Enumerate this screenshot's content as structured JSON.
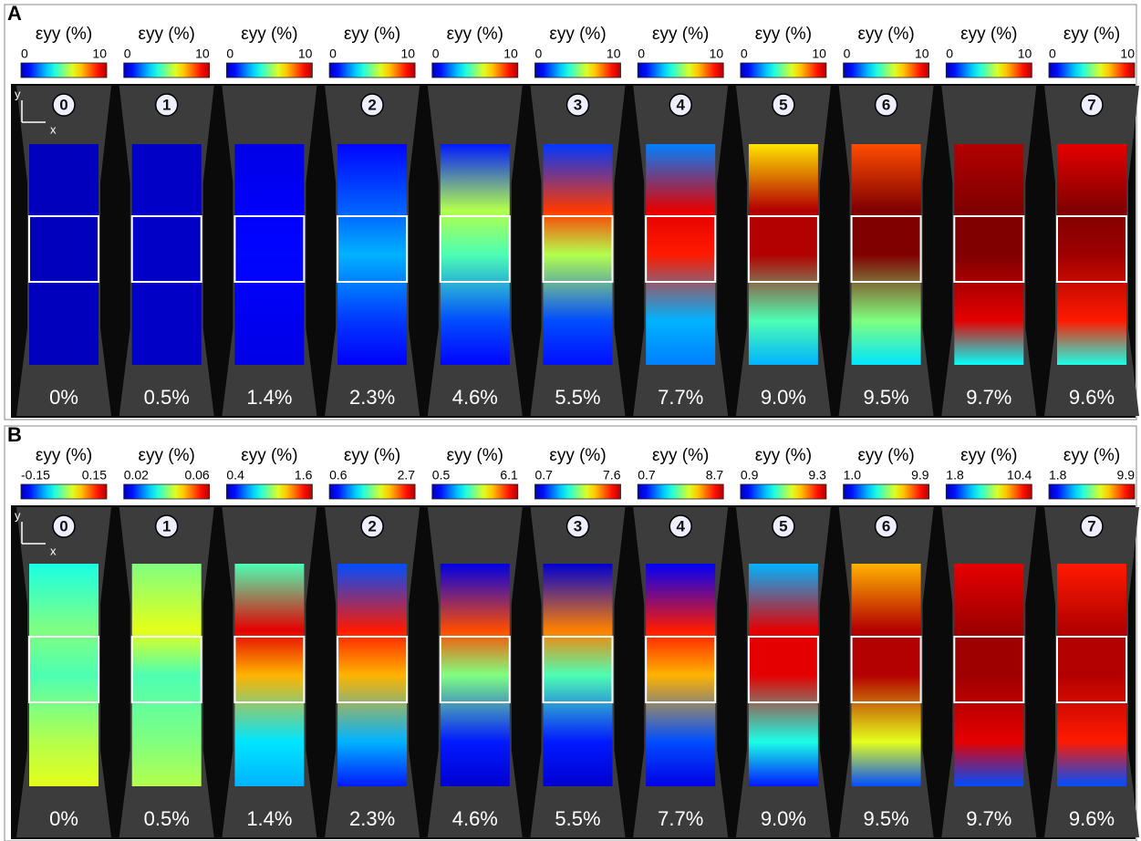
{
  "panels": [
    {
      "label": "A",
      "columns": [
        {
          "colorbar_title": "εyy (%)",
          "colorbar_min": "0",
          "colorbar_max": "10",
          "stage": "0",
          "strain": "0%"
        },
        {
          "colorbar_title": "εyy (%)",
          "colorbar_min": "0",
          "colorbar_max": "10",
          "stage": "1",
          "strain": "0.5%"
        },
        {
          "colorbar_title": "εyy (%)",
          "colorbar_min": "0",
          "colorbar_max": "10",
          "strain": "1.4%"
        },
        {
          "colorbar_title": "εyy (%)",
          "colorbar_min": "0",
          "colorbar_max": "10",
          "stage": "2",
          "strain": "2.3%"
        },
        {
          "colorbar_title": "εyy (%)",
          "colorbar_min": "0",
          "colorbar_max": "10",
          "strain": "4.6%"
        },
        {
          "colorbar_title": "εyy (%)",
          "colorbar_min": "0",
          "colorbar_max": "10",
          "stage": "3",
          "strain": "5.5%"
        },
        {
          "colorbar_title": "εyy (%)",
          "colorbar_min": "0",
          "colorbar_max": "10",
          "stage": "4",
          "strain": "7.7%"
        },
        {
          "colorbar_title": "εyy (%)",
          "colorbar_min": "0",
          "colorbar_max": "10",
          "stage": "5",
          "strain": "9.0%"
        },
        {
          "colorbar_title": "εyy (%)",
          "colorbar_min": "0",
          "colorbar_max": "10",
          "stage": "6",
          "strain": "9.5%"
        },
        {
          "colorbar_title": "εyy (%)",
          "colorbar_min": "0",
          "colorbar_max": "10",
          "strain": "9.7%"
        },
        {
          "colorbar_title": "εyy (%)",
          "colorbar_min": "0",
          "colorbar_max": "10",
          "stage": "7",
          "strain": "9.6%"
        }
      ]
    },
    {
      "label": "B",
      "columns": [
        {
          "colorbar_title": "εyy (%)",
          "colorbar_min": "-0.15",
          "colorbar_max": "0.15",
          "stage": "0",
          "strain": "0%"
        },
        {
          "colorbar_title": "εyy (%)",
          "colorbar_min": "0.02",
          "colorbar_max": "0.06",
          "stage": "1",
          "strain": "0.5%"
        },
        {
          "colorbar_title": "εyy (%)",
          "colorbar_min": "0.4",
          "colorbar_max": "1.6",
          "strain": "1.4%"
        },
        {
          "colorbar_title": "εyy (%)",
          "colorbar_min": "0.6",
          "colorbar_max": "2.7",
          "stage": "2",
          "strain": "2.3%"
        },
        {
          "colorbar_title": "εyy (%)",
          "colorbar_min": "0.5",
          "colorbar_max": "6.1",
          "strain": "4.6%"
        },
        {
          "colorbar_title": "εyy (%)",
          "colorbar_min": "0.7",
          "colorbar_max": "7.6",
          "stage": "3",
          "strain": "5.5%"
        },
        {
          "colorbar_title": "εyy (%)",
          "colorbar_min": "0.7",
          "colorbar_max": "8.7",
          "stage": "4",
          "strain": "7.7%"
        },
        {
          "colorbar_title": "εyy (%)",
          "colorbar_min": "0.9",
          "colorbar_max": "9.3",
          "stage": "5",
          "strain": "9.0%"
        },
        {
          "colorbar_title": "εyy (%)",
          "colorbar_min": "1.0",
          "colorbar_max": "9.9",
          "stage": "6",
          "strain": "9.5%"
        },
        {
          "colorbar_title": "εyy (%)",
          "colorbar_min": "1.8",
          "colorbar_max": "10.4",
          "strain": "9.7%"
        },
        {
          "colorbar_title": "εyy (%)",
          "colorbar_min": "1.8",
          "colorbar_max": "9.9",
          "stage": "7",
          "strain": "9.6%"
        }
      ]
    }
  ],
  "axis_labels": {
    "x": "x",
    "y": "y"
  }
}
